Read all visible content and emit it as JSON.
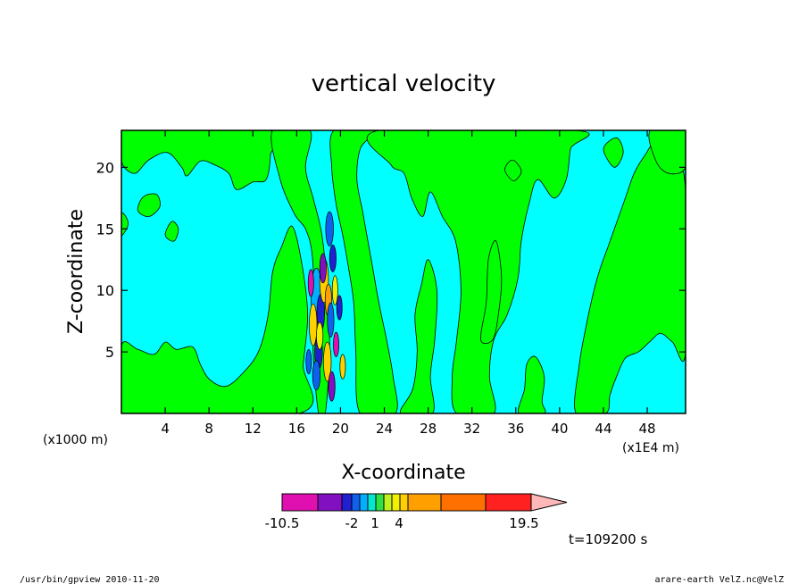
{
  "chart_data": {
    "type": "heatmap",
    "title": "vertical velocity",
    "xlabel": "X-coordinate",
    "ylabel": "Z-coordinate",
    "xlim": [
      0,
      51.5
    ],
    "ylim": [
      0,
      23
    ],
    "x_ticks": [
      4,
      8,
      12,
      16,
      20,
      24,
      28,
      32,
      36,
      40,
      44,
      48
    ],
    "y_ticks": [
      5,
      10,
      15,
      20
    ],
    "x_unit_left": "(x1000 m)",
    "x_unit_right": "(x1E4 m)",
    "grid": false,
    "colorbar": {
      "tick_labels": [
        "-10.5",
        "-2",
        "1",
        "4",
        "19.5"
      ],
      "colors": [
        "#e010b0",
        "#8010c0",
        "#2020d0",
        "#1060f0",
        "#00b0ff",
        "#00e8d0",
        "#30e040",
        "#c0f020",
        "#f0f000",
        "#ffd000",
        "#ffa000",
        "#ff7000",
        "#ff2020",
        "#ff8080",
        "#ffb8b8"
      ]
    },
    "background_color": "#00ffff",
    "positive_color": "#00ff00",
    "updraft_core_x": 18.7,
    "time_label": "t=109200 s"
  },
  "footer": {
    "left": "/usr/bin/gpview   2010-11-20",
    "right": "arare-earth_VelZ.nc@VelZ"
  }
}
